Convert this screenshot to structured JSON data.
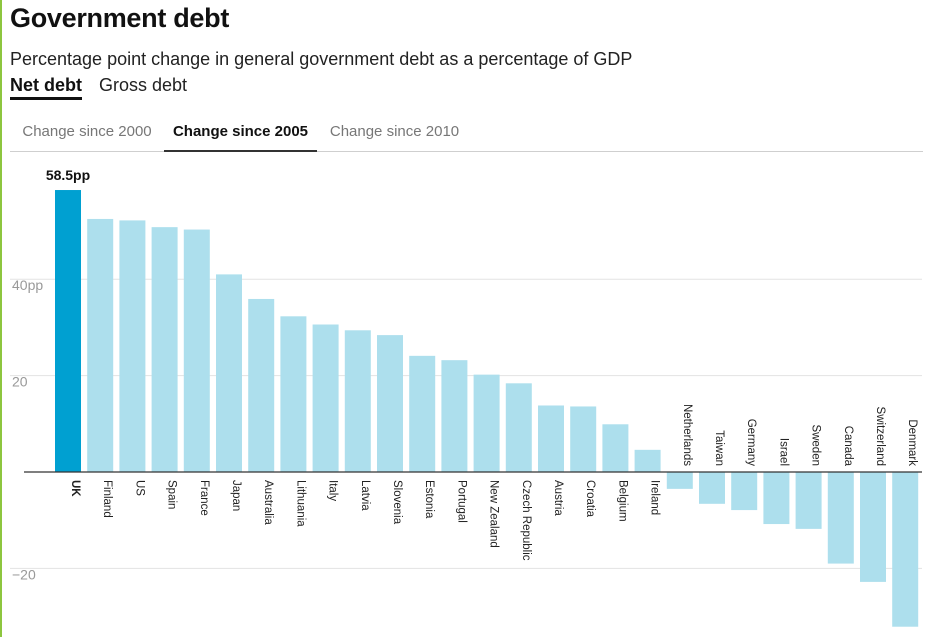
{
  "header": {
    "title": "Government debt",
    "subtitle": "Percentage point change in general government debt as a percentage of GDP"
  },
  "debt_toggle": {
    "net_label": "Net debt",
    "gross_label": "Gross debt",
    "selected": "Net debt"
  },
  "tabs": [
    {
      "label": "Change since 2000"
    },
    {
      "label": "Change since 2005"
    },
    {
      "label": "Change since 2010"
    }
  ],
  "colors": {
    "highlight_bar": "#00a0d1",
    "bar": "#addfed",
    "accent_rule": "#8dc63f",
    "gridline": "#e3e3e3",
    "tick_label": "#999999"
  },
  "chart_data": {
    "type": "bar",
    "title": "Government debt",
    "subtitle": "Percentage point change in general government debt as a percentage of GDP",
    "ylim": [
      -32,
      58.5
    ],
    "yticks": [
      -20,
      0,
      20,
      40
    ],
    "ytick_labels": [
      "−20",
      "",
      "20",
      "40pp"
    ],
    "grid": true,
    "highlight_category": "UK",
    "highlight_label": "58.5pp",
    "categories": [
      "UK",
      "Finland",
      "US",
      "Spain",
      "France",
      "Japan",
      "Australia",
      "Lithuania",
      "Italy",
      "Latvia",
      "Slovenia",
      "Estonia",
      "Portugal",
      "New Zealand",
      "Czech Republic",
      "Austria",
      "Croatia",
      "Belgium",
      "Ireland",
      "Netherlands",
      "Taiwan",
      "Germany",
      "Israel",
      "Sweden",
      "Canada",
      "Switzerland",
      "Denmark"
    ],
    "values": [
      58.5,
      52.5,
      52.2,
      50.8,
      50.3,
      41.0,
      35.9,
      32.3,
      30.6,
      29.4,
      28.4,
      24.1,
      23.2,
      20.2,
      18.4,
      13.8,
      13.6,
      9.9,
      4.6,
      -3.5,
      -6.6,
      -7.9,
      -10.8,
      -11.8,
      -19.0,
      -22.8,
      -32.1
    ]
  }
}
